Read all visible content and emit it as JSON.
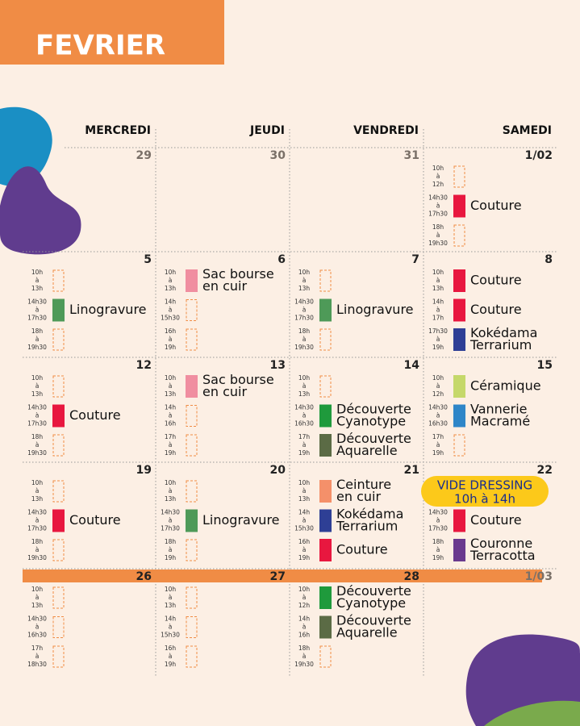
{
  "header": {
    "title": "FEVRIER"
  },
  "days": [
    "MERCREDI",
    "JEUDI",
    "VENDREDI",
    "SAMEDI"
  ],
  "weeks": [
    {
      "cells": [
        {
          "date": "29",
          "muted": true,
          "slots": []
        },
        {
          "date": "30",
          "muted": true,
          "slots": []
        },
        {
          "date": "31",
          "muted": true,
          "slots": []
        },
        {
          "date": "1/02",
          "slots": [
            {
              "time": [
                "10h",
                "à",
                "12h"
              ]
            },
            {
              "time": [
                "14h30",
                "à",
                "17h30"
              ],
              "activity": [
                "Couture"
              ],
              "color": "#e8173f"
            },
            {
              "time": [
                "18h",
                "à",
                "19h30"
              ]
            }
          ]
        }
      ]
    },
    {
      "cells": [
        {
          "date": "5",
          "slots": [
            {
              "time": [
                "10h",
                "à",
                "13h"
              ]
            },
            {
              "time": [
                "14h30",
                "à",
                "17h30"
              ],
              "activity": [
                "Linogravure"
              ],
              "color": "#4e9a58"
            },
            {
              "time": [
                "18h",
                "à",
                "19h30"
              ]
            }
          ]
        },
        {
          "date": "6",
          "slots": [
            {
              "time": [
                "10h",
                "à",
                "13h"
              ],
              "activity": [
                "Sac bourse",
                "en cuir"
              ],
              "color": "#f08ea0"
            },
            {
              "time": [
                "14h",
                "à",
                "15h30"
              ]
            },
            {
              "time": [
                "16h",
                "à",
                "19h"
              ]
            }
          ]
        },
        {
          "date": "7",
          "slots": [
            {
              "time": [
                "10h",
                "à",
                "13h"
              ]
            },
            {
              "time": [
                "14h30",
                "à",
                "17h30"
              ],
              "activity": [
                "Linogravure"
              ],
              "color": "#4e9a58"
            },
            {
              "time": [
                "18h",
                "à",
                "19h30"
              ]
            }
          ]
        },
        {
          "date": "8",
          "slots": [
            {
              "time": [
                "10h",
                "à",
                "13h"
              ],
              "activity": [
                "Couture"
              ],
              "color": "#e8173f"
            },
            {
              "time": [
                "14h",
                "à",
                "17h"
              ],
              "activity": [
                "Couture"
              ],
              "color": "#e8173f"
            },
            {
              "time": [
                "17h30",
                "à",
                "19h"
              ],
              "activity": [
                "Kokédama",
                "Terrarium"
              ],
              "color": "#2e3f95"
            }
          ]
        }
      ]
    },
    {
      "cells": [
        {
          "date": "12",
          "slots": [
            {
              "time": [
                "10h",
                "à",
                "13h"
              ]
            },
            {
              "time": [
                "14h30",
                "à",
                "17h30"
              ],
              "activity": [
                "Couture"
              ],
              "color": "#e8173f"
            },
            {
              "time": [
                "18h",
                "à",
                "19h30"
              ]
            }
          ]
        },
        {
          "date": "13",
          "slots": [
            {
              "time": [
                "10h",
                "à",
                "13h"
              ],
              "activity": [
                "Sac bourse",
                "en cuir"
              ],
              "color": "#f08ea0"
            },
            {
              "time": [
                "14h",
                "à",
                "16h"
              ]
            },
            {
              "time": [
                "17h",
                "à",
                "19h"
              ]
            }
          ]
        },
        {
          "date": "14",
          "slots": [
            {
              "time": [
                "10h",
                "à",
                "13h"
              ]
            },
            {
              "time": [
                "14h30",
                "à",
                "16h30"
              ],
              "activity": [
                "Découverte",
                "Cyanotype"
              ],
              "color": "#1f9a3c"
            },
            {
              "time": [
                "17h",
                "à",
                "19h"
              ],
              "activity": [
                "Découverte",
                "Aquarelle"
              ],
              "color": "#5b6b45"
            }
          ]
        },
        {
          "date": "15",
          "slots": [
            {
              "time": [
                "10h",
                "à",
                "12h"
              ],
              "activity": [
                "Céramique"
              ],
              "color": "#c5d86a"
            },
            {
              "time": [
                "14h30",
                "à",
                "16h30"
              ],
              "activity": [
                "Vannerie",
                "Macramé"
              ],
              "color": "#2e86c8"
            },
            {
              "time": [
                "17h",
                "à",
                "19h"
              ]
            }
          ]
        }
      ]
    },
    {
      "cells": [
        {
          "date": "19",
          "slots": [
            {
              "time": [
                "10h",
                "à",
                "13h"
              ]
            },
            {
              "time": [
                "14h30",
                "à",
                "17h30"
              ],
              "activity": [
                "Couture"
              ],
              "color": "#e8173f"
            },
            {
              "time": [
                "18h",
                "à",
                "19h30"
              ]
            }
          ]
        },
        {
          "date": "20",
          "slots": [
            {
              "time": [
                "10h",
                "à",
                "13h"
              ]
            },
            {
              "time": [
                "14h30",
                "à",
                "17h30"
              ],
              "activity": [
                "Linogravure"
              ],
              "color": "#4e9a58"
            },
            {
              "time": [
                "18h",
                "à",
                "19h"
              ]
            }
          ]
        },
        {
          "date": "21",
          "slots": [
            {
              "time": [
                "10h",
                "à",
                "13h"
              ],
              "activity": [
                "Ceinture",
                "en cuir"
              ],
              "color": "#f4906a"
            },
            {
              "time": [
                "14h",
                "à",
                "15h30"
              ],
              "activity": [
                "Kokédama",
                "Terrarium"
              ],
              "color": "#2e3f95"
            },
            {
              "time": [
                "16h",
                "à",
                "19h"
              ],
              "activity": [
                "Couture"
              ],
              "color": "#e8173f"
            }
          ]
        },
        {
          "date": "22",
          "badge": [
            "VIDE DRESSING",
            "10h à 14h"
          ],
          "slots": [
            {
              "time": [
                "14h30",
                "à",
                "17h30"
              ],
              "activity": [
                "Couture"
              ],
              "color": "#e8173f"
            },
            {
              "time": [
                "18h",
                "à",
                "19h"
              ],
              "activity": [
                "Couronne",
                "Terracotta"
              ],
              "color": "#6a3a8e"
            }
          ]
        }
      ]
    },
    {
      "band": true,
      "cells": [
        {
          "date": "26",
          "slots": [
            {
              "time": [
                "10h",
                "à",
                "13h"
              ]
            },
            {
              "time": [
                "14h30",
                "à",
                "16h30"
              ]
            },
            {
              "time": [
                "17h",
                "à",
                "18h30"
              ]
            }
          ]
        },
        {
          "date": "27",
          "slots": [
            {
              "time": [
                "10h",
                "à",
                "13h"
              ]
            },
            {
              "time": [
                "14h",
                "à",
                "15h30"
              ]
            },
            {
              "time": [
                "16h",
                "à",
                "19h"
              ]
            }
          ]
        },
        {
          "date": "28",
          "slots": [
            {
              "time": [
                "10h",
                "à",
                "12h"
              ],
              "activity": [
                "Découverte",
                "Cyanotype"
              ],
              "color": "#1f9a3c"
            },
            {
              "time": [
                "14h",
                "à",
                "16h"
              ],
              "activity": [
                "Découverte",
                "Aquarelle"
              ],
              "color": "#5b6b45"
            },
            {
              "time": [
                "18h",
                "à",
                "19h30"
              ]
            }
          ]
        },
        {
          "date": "1/03",
          "muted": true,
          "slots": []
        }
      ]
    }
  ]
}
